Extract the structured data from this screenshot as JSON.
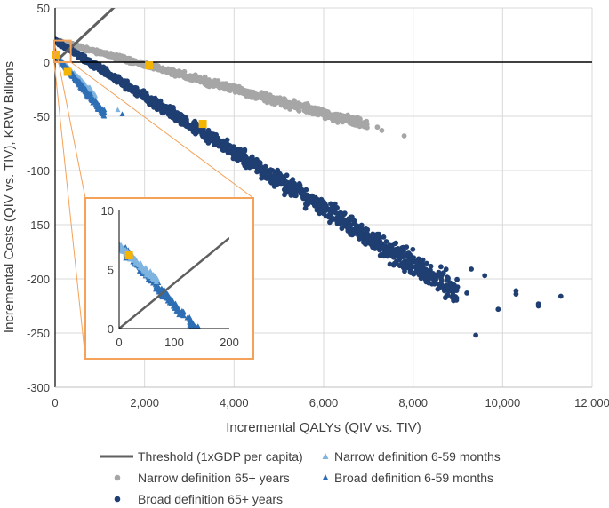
{
  "chart_data": {
    "type": "scatter",
    "title": "",
    "xlabel": "Incremental QALYs (QIV vs. TIV)",
    "ylabel": "Incremental Costs (QIV vs. TIV), KRW Billions",
    "xlim": [
      0,
      12000
    ],
    "ylim": [
      -300,
      50
    ],
    "x_ticks": [
      0,
      2000,
      4000,
      6000,
      8000,
      10000,
      12000
    ],
    "x_tick_labels": [
      "0",
      "2,000",
      "4,000",
      "6,000",
      "8,000",
      "10,000",
      "12,000"
    ],
    "y_ticks": [
      50,
      0,
      -50,
      -100,
      -150,
      -200,
      -250,
      -300
    ],
    "y_tick_labels": [
      "50",
      "0",
      "-50",
      "-100",
      "-150",
      "-200",
      "-250",
      "-300"
    ],
    "threshold": {
      "name": "Threshold (1xGDP per capita)",
      "slope_per_qaly": 0.0384,
      "color": "#5f5f5f"
    },
    "series": [
      {
        "name": "Narrow definition 65+ years",
        "marker": "circle",
        "color": "#a6a6a6",
        "cloud": {
          "x_start": 0,
          "x_end": 7000,
          "y_at_start": 20,
          "slope": -0.0112,
          "spread_start": 2,
          "spread_end": 7,
          "n": 900
        },
        "outliers": [
          [
            6300,
            -48
          ],
          [
            6600,
            -53
          ],
          [
            6800,
            -57
          ],
          [
            7300,
            -63
          ],
          [
            7800,
            -68
          ],
          [
            7200,
            -60
          ]
        ],
        "mean": [
          2100,
          -3
        ]
      },
      {
        "name": "Broad definition 65+ years",
        "marker": "circle",
        "color": "#1f3f73",
        "cloud": {
          "x_start": 0,
          "x_end": 9000,
          "y_at_start": 20,
          "slope": -0.0258,
          "spread_start": 3,
          "spread_end": 18,
          "n": 1400
        },
        "outliers": [
          [
            9400,
            -252
          ],
          [
            9900,
            -228
          ],
          [
            10300,
            -211
          ],
          [
            10800,
            -225
          ],
          [
            10300,
            -214
          ],
          [
            11300,
            -216
          ],
          [
            9600,
            -197
          ],
          [
            9300,
            -191
          ],
          [
            9200,
            -213
          ],
          [
            10800,
            -223
          ]
        ],
        "mean": [
          3300,
          -57
        ]
      },
      {
        "name": "Narrow definition 6-59 months",
        "marker": "triangle",
        "color": "#7fb4e0",
        "cloud": {
          "x_start": 0,
          "x_end": 900,
          "y_at_start": 7,
          "slope": -0.043,
          "spread_start": 1,
          "spread_end": 4,
          "n": 250
        },
        "outliers": [
          [
            1000,
            -41
          ],
          [
            1400,
            -44
          ]
        ]
      },
      {
        "name": "Broad definition 6-59 months",
        "marker": "triangle",
        "color": "#2d6eb4",
        "cloud": {
          "x_start": 0,
          "x_end": 1100,
          "y_at_start": 7,
          "slope": -0.05,
          "spread_start": 1,
          "spread_end": 5,
          "n": 350
        },
        "outliers": [
          [
            1100,
            -44
          ],
          [
            1500,
            -48
          ]
        ],
        "mean": [
          280,
          -9
        ]
      }
    ],
    "inset": {
      "xlim": [
        0,
        200
      ],
      "ylim": [
        0,
        10
      ],
      "x_ticks": [
        0,
        100,
        200
      ],
      "x_tick_labels": [
        "0",
        "100",
        "200"
      ],
      "y_ticks": [
        0,
        5,
        10
      ],
      "y_tick_labels": [
        "0",
        "5",
        "10"
      ],
      "threshold_slope": 0.0384,
      "narrow_cloud": {
        "x_start": 0,
        "x_end": 70,
        "y_at_start": 7,
        "slope": -0.043,
        "spread": 0.4,
        "n": 120
      },
      "broad_cloud": {
        "x_start": 10,
        "x_end": 145,
        "y_at_start": 7,
        "slope": -0.05,
        "spread": 0.55,
        "n": 200
      },
      "mean": [
        18,
        6.2
      ]
    },
    "legend_position": "bottom",
    "mean_marker_color": "#f5b400",
    "highlight_color": "#f4a259"
  }
}
